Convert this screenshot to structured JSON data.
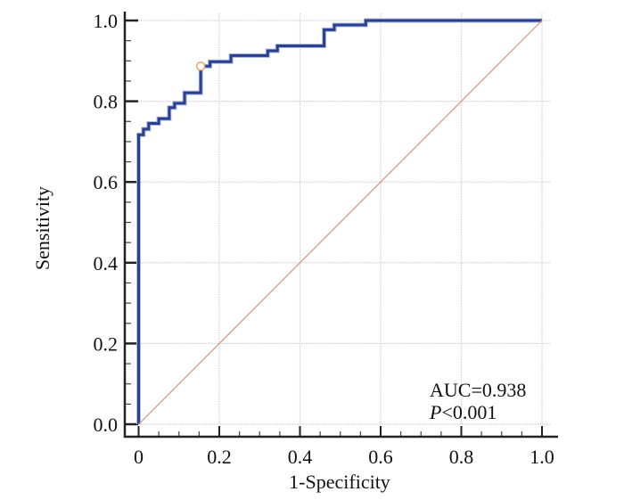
{
  "chart_data": {
    "type": "line",
    "title": "",
    "xlabel": "1-Specificity",
    "ylabel": "Sensitivity",
    "xlim": [
      0,
      1
    ],
    "ylim": [
      0,
      1
    ],
    "x_ticks": [
      "0",
      "0.2",
      "0.4",
      "0.6",
      "0.8",
      "1.0"
    ],
    "y_ticks": [
      "0.0",
      "0.2",
      "0.4",
      "0.6",
      "0.8",
      "1.0"
    ],
    "grid": true,
    "series": [
      {
        "color": "#2c3f8e",
        "x": [
          0,
          0,
          0.012,
          0.012,
          0.025,
          0.025,
          0.05,
          0.05,
          0.076,
          0.076,
          0.089,
          0.089,
          0.114,
          0.114,
          0.154,
          0.154,
          0.177,
          0.177,
          0.229,
          0.229,
          0.32,
          0.32,
          0.344,
          0.344,
          0.46,
          0.46,
          0.485,
          0.485,
          0.563,
          0.563,
          1.0
        ],
        "y": [
          0,
          0.717,
          0.717,
          0.731,
          0.731,
          0.745,
          0.745,
          0.757,
          0.757,
          0.784,
          0.784,
          0.795,
          0.795,
          0.821,
          0.821,
          0.887,
          0.887,
          0.898,
          0.898,
          0.913,
          0.913,
          0.925,
          0.925,
          0.937,
          0.937,
          0.977,
          0.977,
          0.989,
          0.989,
          1.0,
          1.0
        ]
      },
      {
        "color": "#d9937d",
        "x": [
          0,
          1
        ],
        "y": [
          0,
          1
        ]
      }
    ],
    "marker": {
      "x": 0.154,
      "y": 0.887,
      "color": "#f0a070"
    },
    "annotations": {
      "auc": "AUC=0.938",
      "p_letter": "P",
      "p_rest": "<0.001"
    }
  }
}
